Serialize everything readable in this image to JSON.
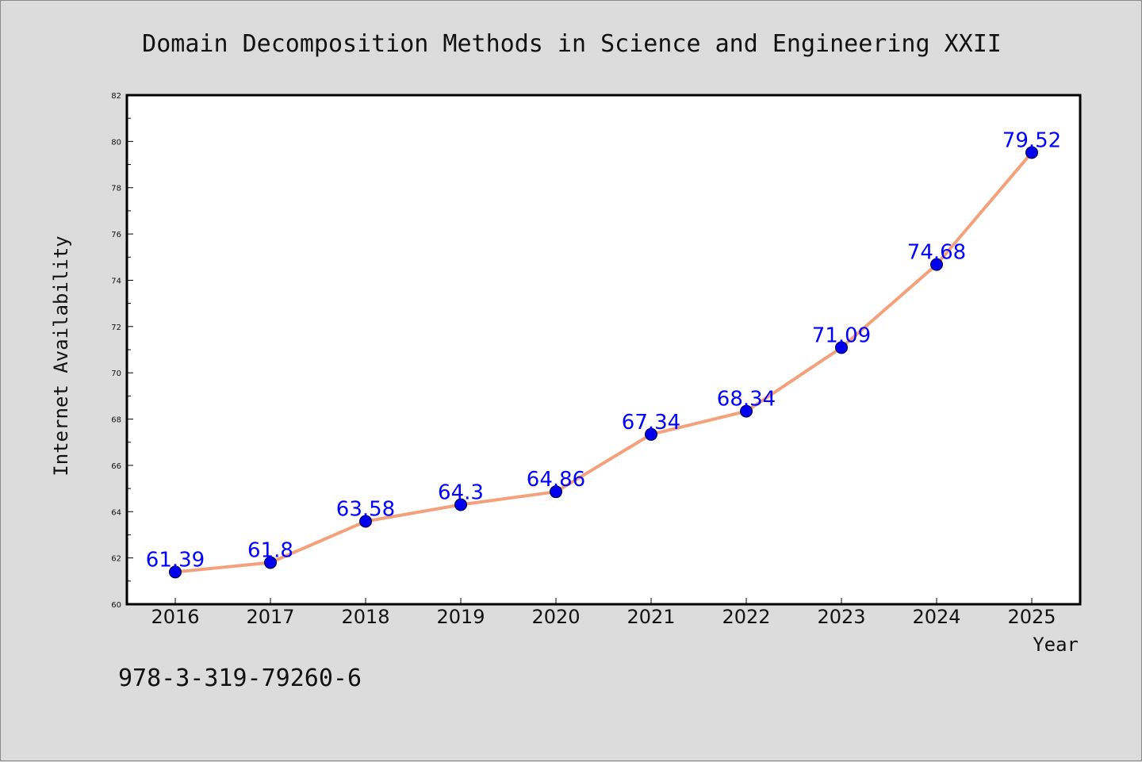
{
  "chart_data": {
    "type": "line",
    "title": "Domain Decomposition Methods in Science and Engineering XXII",
    "xlabel": "Year",
    "ylabel": "Internet Availability",
    "x": [
      "2016",
      "2017",
      "2018",
      "2019",
      "2020",
      "2021",
      "2022",
      "2023",
      "2024",
      "2025"
    ],
    "series": [
      {
        "values": [
          61.39,
          61.8,
          63.58,
          64.3,
          64.86,
          67.34,
          68.34,
          71.09,
          74.68,
          79.52
        ],
        "labels": [
          "61.39",
          "61.8",
          "63.58",
          "64.3",
          "64.86",
          "67.34",
          "68.34",
          "71.09",
          "74.68",
          "79.52"
        ],
        "line_color": "#f4a07a",
        "marker_color": "#0000ee",
        "label_color": "#0000ff"
      }
    ],
    "ylim": [
      60,
      82
    ],
    "y_ticks": [
      "60",
      "62",
      "64",
      "66",
      "68",
      "70",
      "72",
      "74",
      "76",
      "78",
      "80",
      "82"
    ],
    "grid": false,
    "legend": "none"
  },
  "footer": {
    "isbn": "978-3-319-79260-6"
  },
  "colors": {
    "background": "#dcdcdc",
    "plot_background": "#ffffff"
  }
}
